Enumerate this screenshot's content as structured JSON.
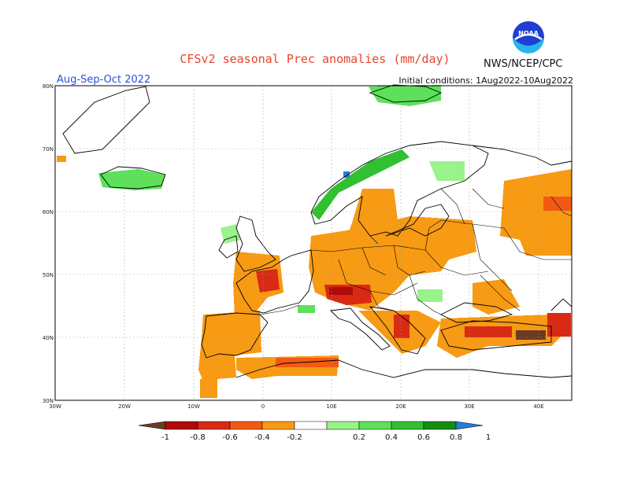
{
  "header": {
    "title": "CFSv2 seasonal Prec anomalies (mm/day)",
    "period": "Aug-Sep-Oct 2022",
    "initial_conditions": "Initial conditions: 1Aug2022-10Aug2022",
    "agency": "NWS/NCEP/CPC",
    "logo_text": "NOAA"
  },
  "map": {
    "lon_range": [
      -30,
      45
    ],
    "lat_range": [
      30,
      80
    ],
    "lon_ticks": [
      "30W",
      "20W",
      "10W",
      "0",
      "10E",
      "20E",
      "30E",
      "40E"
    ],
    "lat_ticks": [
      "30N",
      "40N",
      "50N",
      "60N",
      "70N",
      "80N"
    ],
    "grid": true
  },
  "colorbar": {
    "labels": [
      "-1",
      "-0.8",
      "-0.6",
      "-0.4",
      "-0.2",
      "0.2",
      "0.4",
      "0.6",
      "0.8",
      "1"
    ],
    "colors": [
      "#6b3a23",
      "#b00a0a",
      "#d92a14",
      "#f25a14",
      "#f79a14",
      "#ffffff",
      "#9af28a",
      "#5ee05a",
      "#30c030",
      "#128f12",
      "#2a7ad8"
    ]
  }
}
